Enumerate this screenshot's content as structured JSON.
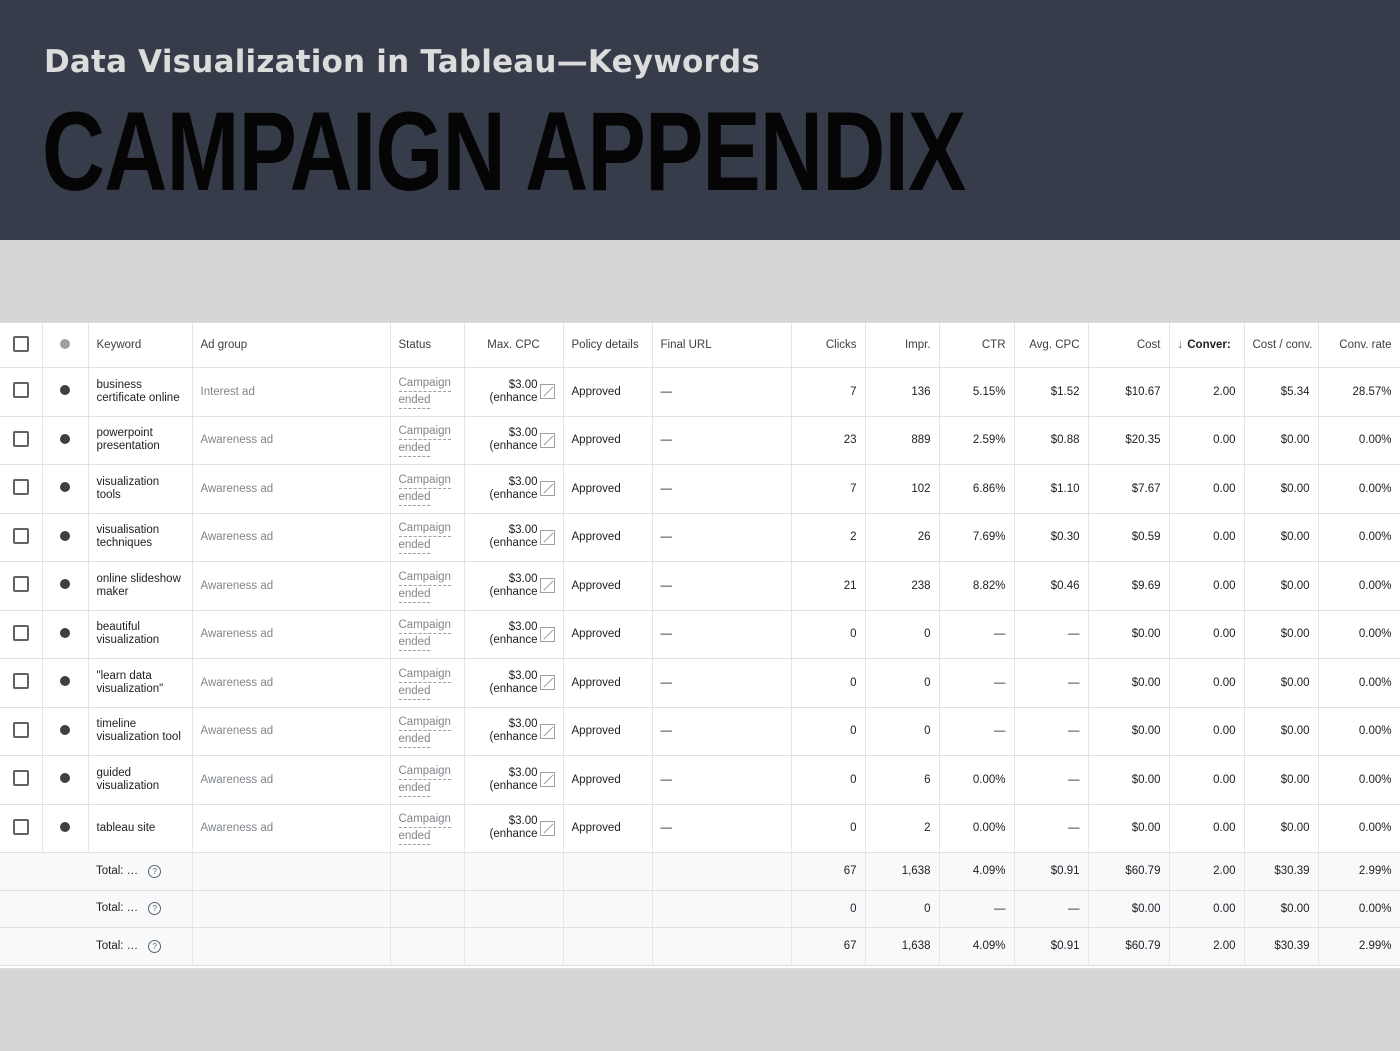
{
  "slide": {
    "subtitle": "Data Visualization in Tableau—Keywords",
    "title": "CAMPAIGN APPENDIX"
  },
  "table": {
    "columns": {
      "keyword": "Keyword",
      "ad_group": "Ad group",
      "status": "Status",
      "max_cpc": "Max. CPC",
      "policy": "Policy details",
      "final_url": "Final URL",
      "clicks": "Clicks",
      "impr": "Impr.",
      "ctr": "CTR",
      "avg_cpc": "Avg. CPC",
      "cost": "Cost",
      "conversions": "Conver:",
      "cost_conv": "Cost / conv.",
      "conv_rate": "Conv. rate"
    },
    "rows": [
      {
        "keyword": "business certificate online",
        "ad_group": "Interest ad",
        "status": [
          "Campaign",
          "ended"
        ],
        "max_cpc": [
          "$3.00",
          "(enhance"
        ],
        "policy": "Approved",
        "final_url": "—",
        "clicks": "7",
        "impr": "136",
        "ctr": "5.15%",
        "avg_cpc": "$1.52",
        "cost": "$10.67",
        "conversions": "2.00",
        "cost_conv": "$5.34",
        "conv_rate": "28.57%"
      },
      {
        "keyword": "powerpoint presentation",
        "ad_group": "Awareness ad",
        "status": [
          "Campaign",
          "ended"
        ],
        "max_cpc": [
          "$3.00",
          "(enhance"
        ],
        "policy": "Approved",
        "final_url": "—",
        "clicks": "23",
        "impr": "889",
        "ctr": "2.59%",
        "avg_cpc": "$0.88",
        "cost": "$20.35",
        "conversions": "0.00",
        "cost_conv": "$0.00",
        "conv_rate": "0.00%"
      },
      {
        "keyword": "visualization tools",
        "ad_group": "Awareness ad",
        "status": [
          "Campaign",
          "ended"
        ],
        "max_cpc": [
          "$3.00",
          "(enhance"
        ],
        "policy": "Approved",
        "final_url": "—",
        "clicks": "7",
        "impr": "102",
        "ctr": "6.86%",
        "avg_cpc": "$1.10",
        "cost": "$7.67",
        "conversions": "0.00",
        "cost_conv": "$0.00",
        "conv_rate": "0.00%"
      },
      {
        "keyword": "visualisation techniques",
        "ad_group": "Awareness ad",
        "status": [
          "Campaign",
          "ended"
        ],
        "max_cpc": [
          "$3.00",
          "(enhance"
        ],
        "policy": "Approved",
        "final_url": "—",
        "clicks": "2",
        "impr": "26",
        "ctr": "7.69%",
        "avg_cpc": "$0.30",
        "cost": "$0.59",
        "conversions": "0.00",
        "cost_conv": "$0.00",
        "conv_rate": "0.00%"
      },
      {
        "keyword": "online slideshow maker",
        "ad_group": "Awareness ad",
        "status": [
          "Campaign",
          "ended"
        ],
        "max_cpc": [
          "$3.00",
          "(enhance"
        ],
        "policy": "Approved",
        "final_url": "—",
        "clicks": "21",
        "impr": "238",
        "ctr": "8.82%",
        "avg_cpc": "$0.46",
        "cost": "$9.69",
        "conversions": "0.00",
        "cost_conv": "$0.00",
        "conv_rate": "0.00%"
      },
      {
        "keyword": "beautiful visualization",
        "ad_group": "Awareness ad",
        "status": [
          "Campaign",
          "ended"
        ],
        "max_cpc": [
          "$3.00",
          "(enhance"
        ],
        "policy": "Approved",
        "final_url": "—",
        "clicks": "0",
        "impr": "0",
        "ctr": "—",
        "avg_cpc": "—",
        "cost": "$0.00",
        "conversions": "0.00",
        "cost_conv": "$0.00",
        "conv_rate": "0.00%"
      },
      {
        "keyword": "\"learn data visualization\"",
        "ad_group": "Awareness ad",
        "status": [
          "Campaign",
          "ended"
        ],
        "max_cpc": [
          "$3.00",
          "(enhance"
        ],
        "policy": "Approved",
        "final_url": "—",
        "clicks": "0",
        "impr": "0",
        "ctr": "—",
        "avg_cpc": "—",
        "cost": "$0.00",
        "conversions": "0.00",
        "cost_conv": "$0.00",
        "conv_rate": "0.00%"
      },
      {
        "keyword": "timeline visualization tool",
        "ad_group": "Awareness ad",
        "status": [
          "Campaign",
          "ended"
        ],
        "max_cpc": [
          "$3.00",
          "(enhance"
        ],
        "policy": "Approved",
        "final_url": "—",
        "clicks": "0",
        "impr": "0",
        "ctr": "—",
        "avg_cpc": "—",
        "cost": "$0.00",
        "conversions": "0.00",
        "cost_conv": "$0.00",
        "conv_rate": "0.00%"
      },
      {
        "keyword": "guided visualization",
        "ad_group": "Awareness ad",
        "status": [
          "Campaign",
          "ended"
        ],
        "max_cpc": [
          "$3.00",
          "(enhance"
        ],
        "policy": "Approved",
        "final_url": "—",
        "clicks": "0",
        "impr": "6",
        "ctr": "0.00%",
        "avg_cpc": "—",
        "cost": "$0.00",
        "conversions": "0.00",
        "cost_conv": "$0.00",
        "conv_rate": "0.00%"
      },
      {
        "keyword": "tableau site",
        "ad_group": "Awareness ad",
        "status": [
          "Campaign",
          "ended"
        ],
        "max_cpc": [
          "$3.00",
          "(enhance"
        ],
        "policy": "Approved",
        "final_url": "—",
        "clicks": "0",
        "impr": "2",
        "ctr": "0.00%",
        "avg_cpc": "—",
        "cost": "$0.00",
        "conversions": "0.00",
        "cost_conv": "$0.00",
        "conv_rate": "0.00%"
      }
    ],
    "totals": [
      {
        "label": "Total: …",
        "clicks": "67",
        "impr": "1,638",
        "ctr": "4.09%",
        "avg_cpc": "$0.91",
        "cost": "$60.79",
        "conversions": "2.00",
        "cost_conv": "$30.39",
        "conv_rate": "2.99%"
      },
      {
        "label": "Total: …",
        "clicks": "0",
        "impr": "0",
        "ctr": "—",
        "avg_cpc": "—",
        "cost": "$0.00",
        "conversions": "0.00",
        "cost_conv": "$0.00",
        "conv_rate": "0.00%"
      },
      {
        "label": "Total: …",
        "clicks": "67",
        "impr": "1,638",
        "ctr": "4.09%",
        "avg_cpc": "$0.91",
        "cost": "$60.79",
        "conversions": "2.00",
        "cost_conv": "$30.39",
        "conv_rate": "2.99%"
      }
    ],
    "colors": {
      "header_bg": "#363c49",
      "subtitle": "#dcdcdc",
      "title": "#050505",
      "page_bg": "#d6d6d6"
    }
  }
}
